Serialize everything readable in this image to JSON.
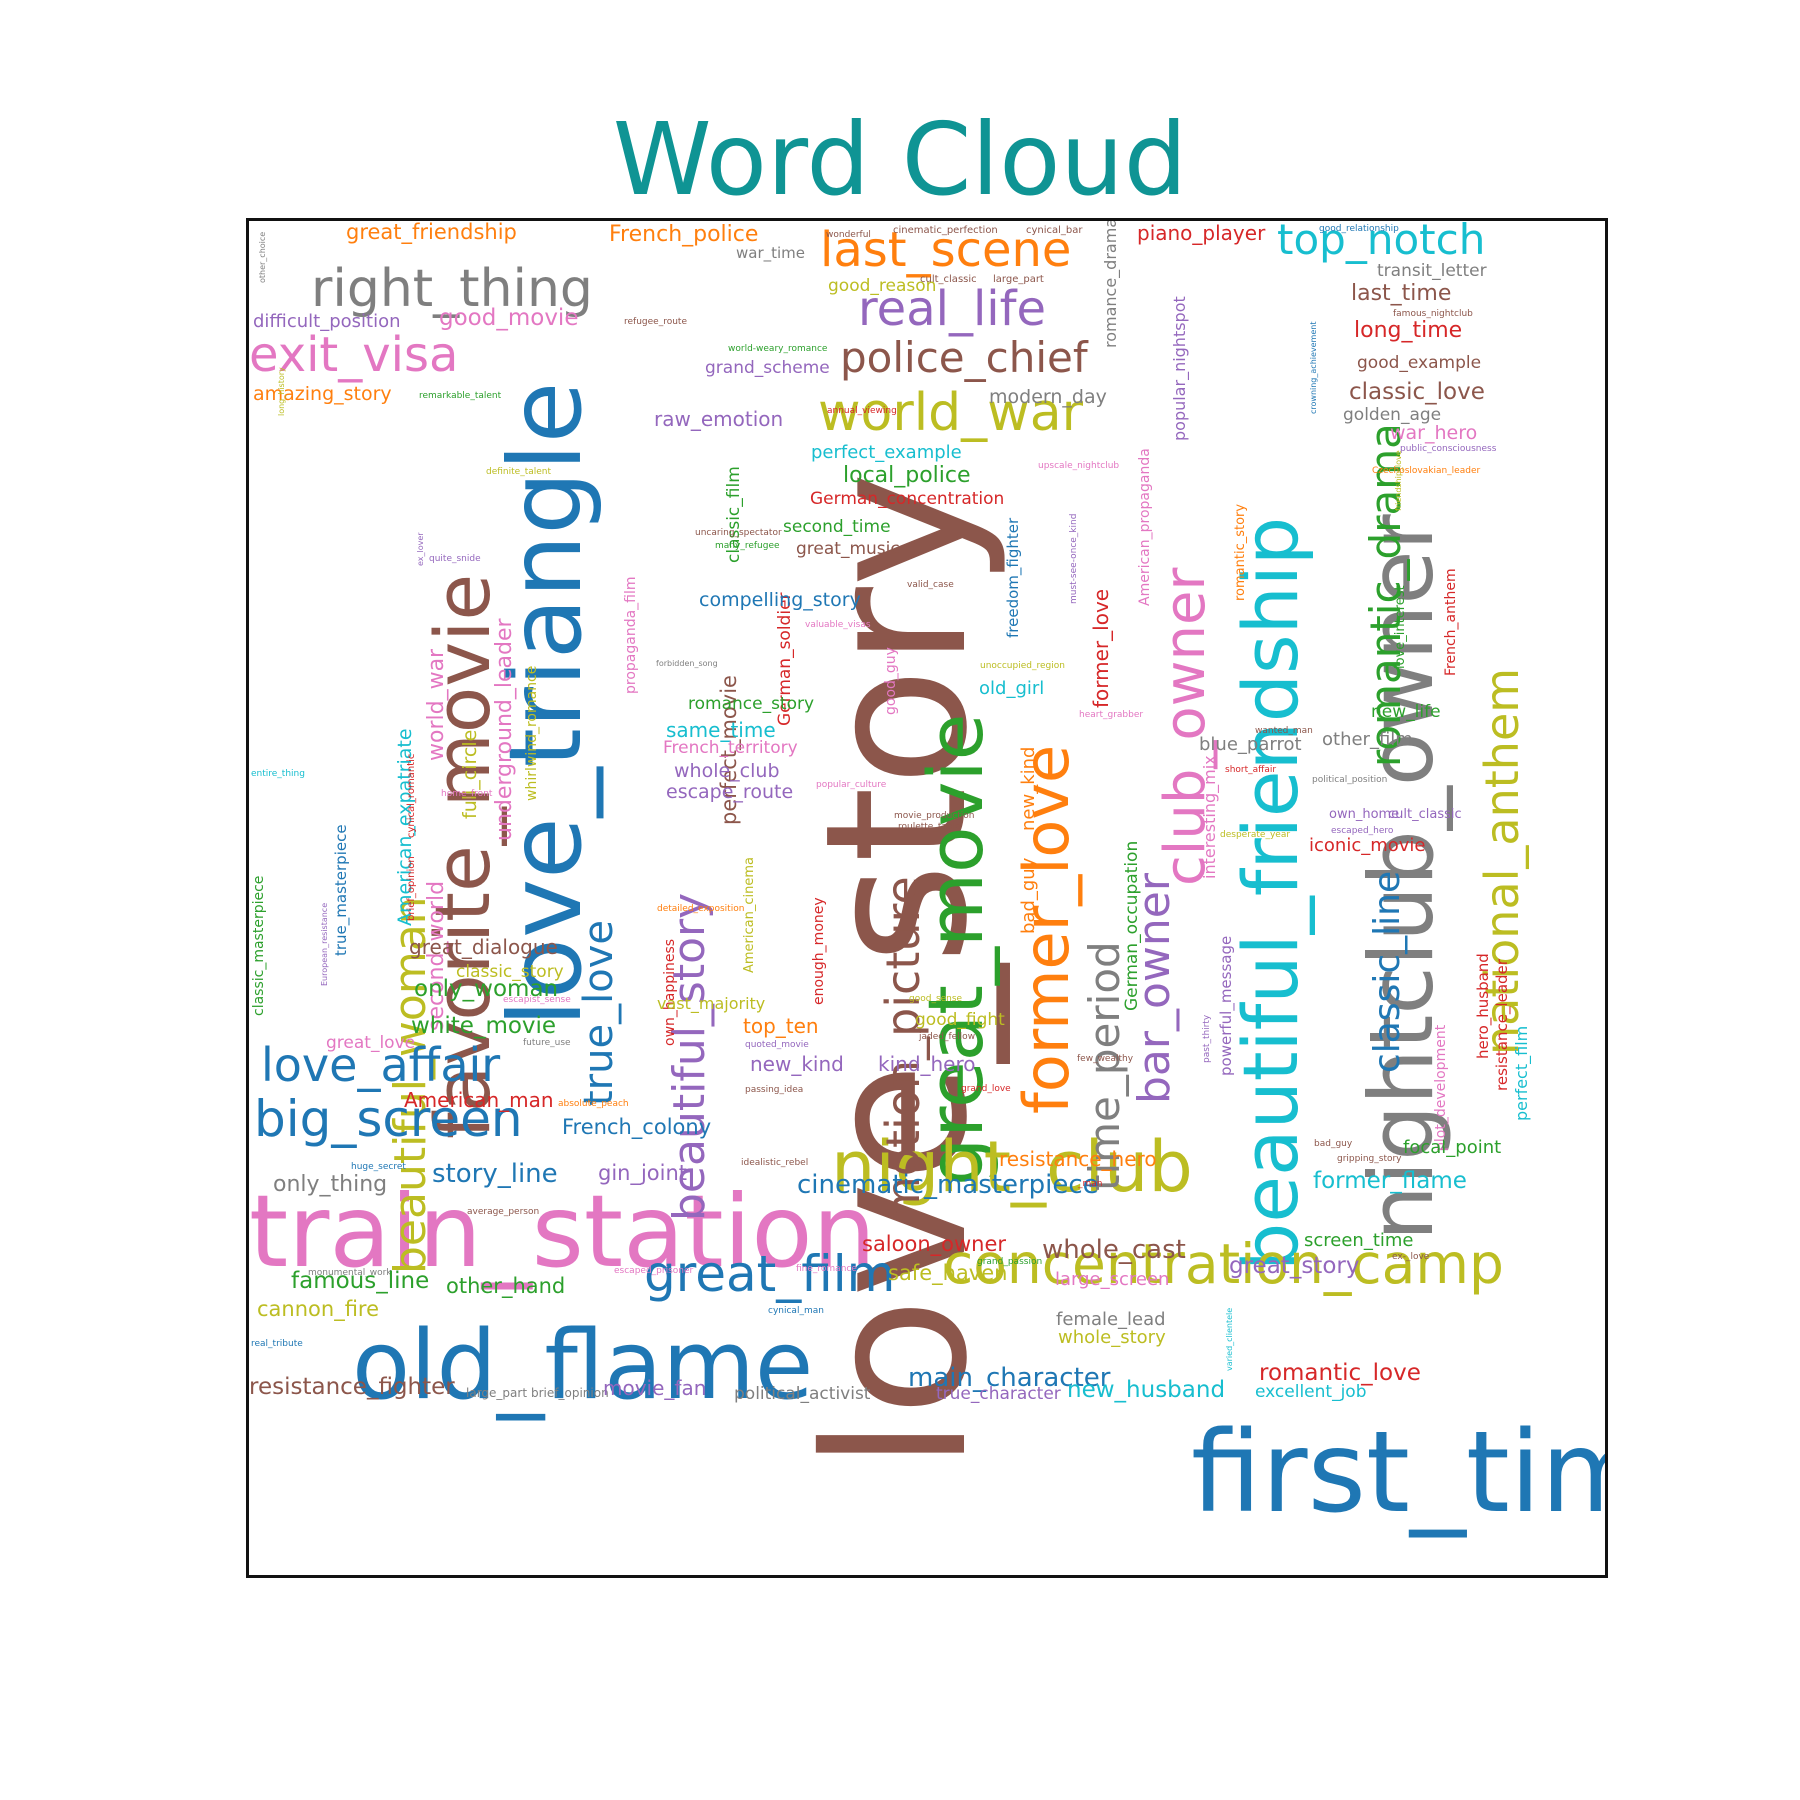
{
  "title": "Word Cloud",
  "colors": {
    "title": "#0f9494",
    "border": "#111111",
    "palette": [
      "#1f77b4",
      "#ff7f0e",
      "#2ca02c",
      "#d62728",
      "#9467bd",
      "#8c564b",
      "#e377c2",
      "#7f7f7f",
      "#bcbd22",
      "#17becf"
    ]
  },
  "words": [
    {
      "text": "love_story",
      "color": "#8c564b"
    },
    {
      "text": "first_time",
      "color": "#1f77b4"
    },
    {
      "text": "train_station",
      "color": "#e377c2"
    },
    {
      "text": "old_flame",
      "color": "#1f77b4"
    },
    {
      "text": "love_triangle",
      "color": "#1f77b4"
    },
    {
      "text": "nightclub_owner",
      "color": "#7f7f7f"
    },
    {
      "text": "beautiful_friendship",
      "color": "#17becf"
    },
    {
      "text": "favorite_movie",
      "color": "#8c564b"
    },
    {
      "text": "great_movie",
      "color": "#2ca02c"
    },
    {
      "text": "former_love",
      "color": "#ff7f0e"
    },
    {
      "text": "club_owner",
      "color": "#e377c2"
    },
    {
      "text": "night_club",
      "color": "#bcbd22"
    },
    {
      "text": "concentration_camp",
      "color": "#bcbd22"
    },
    {
      "text": "right_thing",
      "color": "#7f7f7f"
    },
    {
      "text": "national_anthem",
      "color": "#bcbd22"
    },
    {
      "text": "motion_picture",
      "color": "#8c564b"
    },
    {
      "text": "beautiful_story",
      "color": "#9467bd"
    },
    {
      "text": "beautiful_woman",
      "color": "#bcbd22"
    },
    {
      "text": "last_scene",
      "color": "#ff7f0e"
    },
    {
      "text": "real_life",
      "color": "#9467bd"
    },
    {
      "text": "world_war",
      "color": "#bcbd22"
    },
    {
      "text": "great_film",
      "color": "#1f77b4"
    },
    {
      "text": "big_screen",
      "color": "#1f77b4"
    },
    {
      "text": "love_affair",
      "color": "#1f77b4"
    },
    {
      "text": "exit_visa",
      "color": "#e377c2"
    },
    {
      "text": "bar_owner",
      "color": "#9467bd"
    },
    {
      "text": "time_period",
      "color": "#7f7f7f"
    },
    {
      "text": "romantic_drama",
      "color": "#2ca02c"
    },
    {
      "text": "classic_line",
      "color": "#1f77b4"
    },
    {
      "text": "true_love",
      "color": "#1f77b4"
    },
    {
      "text": "police_chief",
      "color": "#8c564b"
    },
    {
      "text": "top_notch",
      "color": "#17becf"
    },
    {
      "text": "cinematic_masterpiece",
      "color": "#1f77b4"
    },
    {
      "text": "main_character",
      "color": "#1f77b4"
    },
    {
      "text": "second_world",
      "color": "#e377c2"
    },
    {
      "text": "world_war",
      "color": "#e377c2"
    },
    {
      "text": "underground_leader",
      "color": "#e377c2"
    },
    {
      "text": "whirlwind_romance",
      "color": "#bcbd22"
    },
    {
      "text": "American_expatriate",
      "color": "#17becf"
    },
    {
      "text": "full_circle",
      "color": "#bcbd22"
    },
    {
      "text": "perfect_movie",
      "color": "#8c564b"
    },
    {
      "text": "German_soldier",
      "color": "#d62728"
    },
    {
      "text": "classic_film",
      "color": "#2ca02c"
    },
    {
      "text": "great_friendship",
      "color": "#ff7f0e"
    },
    {
      "text": "French_police",
      "color": "#ff7f0e"
    },
    {
      "text": "war_time",
      "color": "#7f7f7f"
    },
    {
      "text": "wonderful",
      "color": "#8c564b"
    },
    {
      "text": "cinematic_perfection",
      "color": "#8c564b"
    },
    {
      "text": "cynical_bar",
      "color": "#8c564b"
    },
    {
      "text": "piano_player",
      "color": "#d62728"
    },
    {
      "text": "good_relationship",
      "color": "#1f77b4"
    },
    {
      "text": "transit_letter",
      "color": "#7f7f7f"
    },
    {
      "text": "last_time",
      "color": "#8c564b"
    },
    {
      "text": "famous_nightclub",
      "color": "#8c564b"
    },
    {
      "text": "long_time",
      "color": "#d62728"
    },
    {
      "text": "good_example",
      "color": "#8c564b"
    },
    {
      "text": "classic_love",
      "color": "#8c564b"
    },
    {
      "text": "golden_age",
      "color": "#7f7f7f"
    },
    {
      "text": "war_hero",
      "color": "#e377c2"
    },
    {
      "text": "public_consciousness",
      "color": "#9467bd"
    },
    {
      "text": "Czechoslovakian_leader",
      "color": "#ff7f0e"
    },
    {
      "text": "good_reason",
      "color": "#bcbd22"
    },
    {
      "text": "cult_classic",
      "color": "#8c564b"
    },
    {
      "text": "large_part",
      "color": "#8c564b"
    },
    {
      "text": "romance_drama",
      "color": "#7f7f7f"
    },
    {
      "text": "popular_nightspot",
      "color": "#9467bd"
    },
    {
      "text": "crowning_achievement",
      "color": "#1f77b4"
    },
    {
      "text": "difficult_position",
      "color": "#9467bd"
    },
    {
      "text": "good_movie",
      "color": "#e377c2"
    },
    {
      "text": "refugee_route",
      "color": "#8c564b"
    },
    {
      "text": "world-weary_romance",
      "color": "#2ca02c"
    },
    {
      "text": "grand_scheme",
      "color": "#9467bd"
    },
    {
      "text": "modern_day",
      "color": "#7f7f7f"
    },
    {
      "text": "amazing_story",
      "color": "#ff7f0e"
    },
    {
      "text": "remarkable_talent",
      "color": "#2ca02c"
    },
    {
      "text": "raw_emotion",
      "color": "#9467bd"
    },
    {
      "text": "annual_viewing",
      "color": "#d62728"
    },
    {
      "text": "perfect_example",
      "color": "#17becf"
    },
    {
      "text": "local_police",
      "color": "#2ca02c"
    },
    {
      "text": "German_concentration",
      "color": "#d62728"
    },
    {
      "text": "upscale_nightclub",
      "color": "#e377c2"
    },
    {
      "text": "American_propaganda",
      "color": "#e377c2"
    },
    {
      "text": "romantic_story",
      "color": "#ff7f0e"
    },
    {
      "text": "second_time",
      "color": "#2ca02c"
    },
    {
      "text": "great_music",
      "color": "#8c564b"
    },
    {
      "text": "uncaring_spectator",
      "color": "#8c564b"
    },
    {
      "text": "many_refugee",
      "color": "#2ca02c"
    },
    {
      "text": "freedom_fighter",
      "color": "#1f77b4"
    },
    {
      "text": "must-see-once_kind",
      "color": "#9467bd"
    },
    {
      "text": "former_love",
      "color": "#d62728"
    },
    {
      "text": "compelling_story",
      "color": "#1f77b4"
    },
    {
      "text": "valid_case",
      "color": "#8c564b"
    },
    {
      "text": "valuable_visas",
      "color": "#e377c2"
    },
    {
      "text": "forbidden_song",
      "color": "#7f7f7f"
    },
    {
      "text": "propaganda_film",
      "color": "#e377c2"
    },
    {
      "text": "good_guy",
      "color": "#e377c2"
    },
    {
      "text": "unoccupied_region",
      "color": "#bcbd22"
    },
    {
      "text": "old_girl",
      "color": "#17becf"
    },
    {
      "text": "romance_story",
      "color": "#2ca02c"
    },
    {
      "text": "same_time",
      "color": "#17becf"
    },
    {
      "text": "French_territory",
      "color": "#e377c2"
    },
    {
      "text": "whole_club",
      "color": "#9467bd"
    },
    {
      "text": "escape_route",
      "color": "#9467bd"
    },
    {
      "text": "heart_grabber",
      "color": "#e377c2"
    },
    {
      "text": "new_kind",
      "color": "#ff7f0e"
    },
    {
      "text": "bad_guy",
      "color": "#ff7f0e"
    },
    {
      "text": "popular_culture",
      "color": "#e377c2"
    },
    {
      "text": "movie_production",
      "color": "#8c564b"
    },
    {
      "text": "roulette_table",
      "color": "#8c564b"
    },
    {
      "text": "blue_parrot",
      "color": "#7f7f7f"
    },
    {
      "text": "other_film",
      "color": "#7f7f7f"
    },
    {
      "text": "new_life",
      "color": "#2ca02c"
    },
    {
      "text": "wanted_man",
      "color": "#8c564b"
    },
    {
      "text": "short_affair",
      "color": "#d62728"
    },
    {
      "text": "political_position",
      "color": "#7f7f7f"
    },
    {
      "text": "love_interest",
      "color": "#2ca02c"
    },
    {
      "text": "French_anthem",
      "color": "#d62728"
    },
    {
      "text": "friendship_love",
      "color": "#bcbd22"
    },
    {
      "text": "interesting_mix",
      "color": "#e377c2"
    },
    {
      "text": "own_home",
      "color": "#9467bd"
    },
    {
      "text": "cult_classic",
      "color": "#9467bd"
    },
    {
      "text": "escaped_hero",
      "color": "#9467bd"
    },
    {
      "text": "iconic_movie",
      "color": "#d62728"
    },
    {
      "text": "desperate_year",
      "color": "#bcbd22"
    },
    {
      "text": "German_occupation",
      "color": "#2ca02c"
    },
    {
      "text": "powerful_message",
      "color": "#9467bd"
    },
    {
      "text": "past_thirty",
      "color": "#9467bd"
    },
    {
      "text": "hero_husband",
      "color": "#d62728"
    },
    {
      "text": "resistance_leader",
      "color": "#d62728"
    },
    {
      "text": "perfect_film",
      "color": "#17becf"
    },
    {
      "text": "plot_development",
      "color": "#e377c2"
    },
    {
      "text": "focal_point",
      "color": "#2ca02c"
    },
    {
      "text": "bad_guy",
      "color": "#8c564b"
    },
    {
      "text": "gripping_story",
      "color": "#8c564b"
    },
    {
      "text": "former_flame",
      "color": "#17becf"
    },
    {
      "text": "great_dialogue",
      "color": "#8c564b"
    },
    {
      "text": "classic_story",
      "color": "#bcbd22"
    },
    {
      "text": "only_woman",
      "color": "#2ca02c"
    },
    {
      "text": "white_movie",
      "color": "#2ca02c"
    },
    {
      "text": "own_happiness",
      "color": "#d62728"
    },
    {
      "text": "vast_majority",
      "color": "#bcbd22"
    },
    {
      "text": "American_cinema",
      "color": "#bcbd22"
    },
    {
      "text": "enough_money",
      "color": "#d62728"
    },
    {
      "text": "detailed_exposition",
      "color": "#ff7f0e"
    },
    {
      "text": "top_ten",
      "color": "#ff7f0e"
    },
    {
      "text": "quoted_movie",
      "color": "#9467bd"
    },
    {
      "text": "new_kind",
      "color": "#9467bd"
    },
    {
      "text": "kind_hero",
      "color": "#9467bd"
    },
    {
      "text": "good_sense",
      "color": "#bcbd22"
    },
    {
      "text": "good_fight",
      "color": "#bcbd22"
    },
    {
      "text": "jaded_fellow",
      "color": "#8c564b"
    },
    {
      "text": "few_wealthy",
      "color": "#8c564b"
    },
    {
      "text": "grand_love",
      "color": "#d62728"
    },
    {
      "text": "passing_idea",
      "color": "#8c564b"
    },
    {
      "text": "brief_opinion",
      "color": "#d62728"
    },
    {
      "text": "cynical_romantic",
      "color": "#d62728"
    },
    {
      "text": "true_masterpiece",
      "color": "#1f77b4"
    },
    {
      "text": "home_front",
      "color": "#e377c2"
    },
    {
      "text": "classic_masterpiece",
      "color": "#2ca02c"
    },
    {
      "text": "European_resistance",
      "color": "#9467bd"
    },
    {
      "text": "escapist_sense",
      "color": "#e377c2"
    },
    {
      "text": "great_love",
      "color": "#e377c2"
    },
    {
      "text": "future_use",
      "color": "#7f7f7f"
    },
    {
      "text": "American_man",
      "color": "#d62728"
    },
    {
      "text": "absolute_peach",
      "color": "#ff7f0e"
    },
    {
      "text": "French_colony",
      "color": "#1f77b4"
    },
    {
      "text": "resistance_hero",
      "color": "#ff7f0e"
    },
    {
      "text": "story_line",
      "color": "#1f77b4"
    },
    {
      "text": "gin_joint",
      "color": "#9467bd"
    },
    {
      "text": "idealistic_rebel",
      "color": "#8c564b"
    },
    {
      "text": "huge_secret",
      "color": "#1f77b4"
    },
    {
      "text": "only_thing",
      "color": "#7f7f7f"
    },
    {
      "text": "_man",
      "color": "#d62728"
    },
    {
      "text": "average_person",
      "color": "#8c564b"
    },
    {
      "text": "saloon_owner",
      "color": "#d62728"
    },
    {
      "text": "whole_cast",
      "color": "#8c564b"
    },
    {
      "text": "screen_time",
      "color": "#2ca02c"
    },
    {
      "text": "great_story",
      "color": "#9467bd"
    },
    {
      "text": "ex-_love",
      "color": "#8c564b"
    },
    {
      "text": "grand_passion",
      "color": "#2ca02c"
    },
    {
      "text": "safe_haven",
      "color": "#bcbd22"
    },
    {
      "text": "large_screen",
      "color": "#e377c2"
    },
    {
      "text": "fine_romance",
      "color": "#e377c2"
    },
    {
      "text": "escaped_prisoner",
      "color": "#e377c2"
    },
    {
      "text": "monumental_work",
      "color": "#7f7f7f"
    },
    {
      "text": "famous_line",
      "color": "#2ca02c"
    },
    {
      "text": "other_hand",
      "color": "#2ca02c"
    },
    {
      "text": "cannon_fire",
      "color": "#bcbd22"
    },
    {
      "text": "cynical_man",
      "color": "#1f77b4"
    },
    {
      "text": "female_lead",
      "color": "#7f7f7f"
    },
    {
      "text": "whole_story",
      "color": "#bcbd22"
    },
    {
      "text": "varied_clientele",
      "color": "#17becf"
    },
    {
      "text": "real_tribute",
      "color": "#1f77b4"
    },
    {
      "text": "resistance_fighter",
      "color": "#8c564b"
    },
    {
      "text": "large_part",
      "color": "#7f7f7f"
    },
    {
      "text": "brief_opinion",
      "color": "#7f7f7f"
    },
    {
      "text": "movie_fan",
      "color": "#9467bd"
    },
    {
      "text": "political_activist",
      "color": "#7f7f7f"
    },
    {
      "text": "true_character",
      "color": "#9467bd"
    },
    {
      "text": "new_husband",
      "color": "#17becf"
    },
    {
      "text": "excellent_job",
      "color": "#17becf"
    },
    {
      "text": "romantic_love",
      "color": "#d62728"
    },
    {
      "text": "other_choice",
      "color": "#7f7f7f"
    },
    {
      "text": "long_history",
      "color": "#bcbd22"
    },
    {
      "text": "definite_talent",
      "color": "#bcbd22"
    },
    {
      "text": "ex_lover",
      "color": "#9467bd"
    },
    {
      "text": "quite_snide",
      "color": "#9467bd"
    },
    {
      "text": "entire_thing",
      "color": "#17becf"
    }
  ]
}
